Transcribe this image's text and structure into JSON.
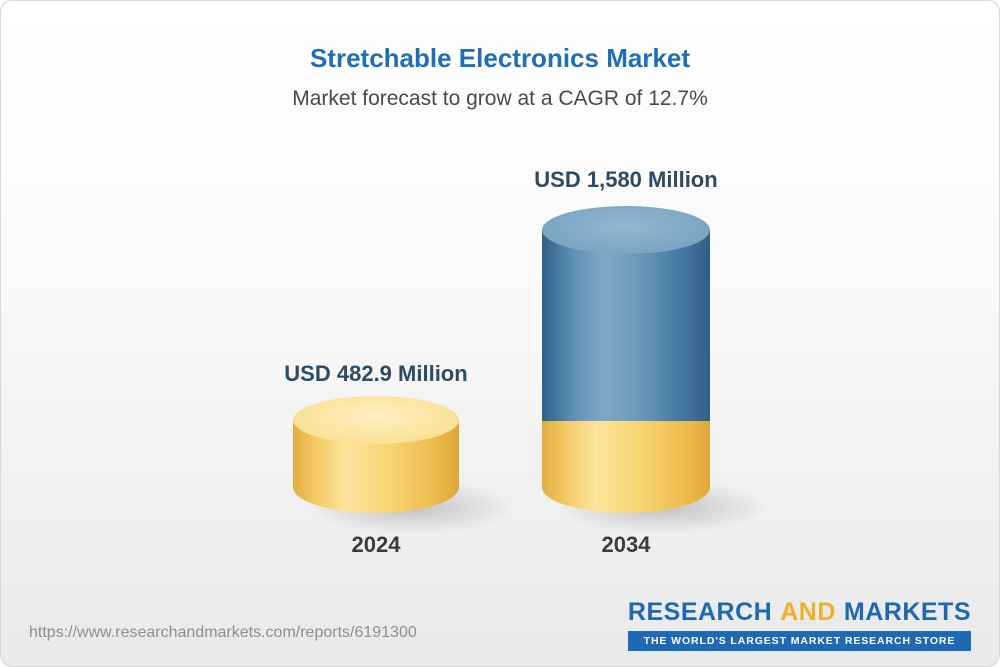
{
  "chart_data": {
    "type": "bar",
    "bar_style": "3d-cylinder",
    "title": "Stretchable Electronics Market",
    "subtitle": "Market forecast to grow at a CAGR of 12.7%",
    "cagr_percent": 12.7,
    "unit": "USD Million",
    "categories": [
      "2024",
      "2034"
    ],
    "values": [
      482.9,
      1580
    ],
    "value_labels": [
      "USD 482.9 Million",
      "USD 1,580 Million"
    ],
    "legend": "none",
    "grid": false,
    "axes": "none",
    "colors": {
      "bar_2024": "#f6d272",
      "bar_2034_top_segment": "#5d8fb4",
      "bar_2034_base_segment": "#f6d272",
      "title_blue": "#1f6fb8",
      "value_label": "#2e4b64"
    }
  },
  "footer": {
    "url": "https://www.researchandmarkets.com/reports/6191300",
    "logo": {
      "research": "RESEARCH",
      "and": "AND",
      "markets": "MARKETS",
      "tagline": "THE WORLD'S LARGEST MARKET RESEARCH STORE",
      "brand_blue": "#1d69b4",
      "brand_orange": "#f2af2c"
    }
  }
}
